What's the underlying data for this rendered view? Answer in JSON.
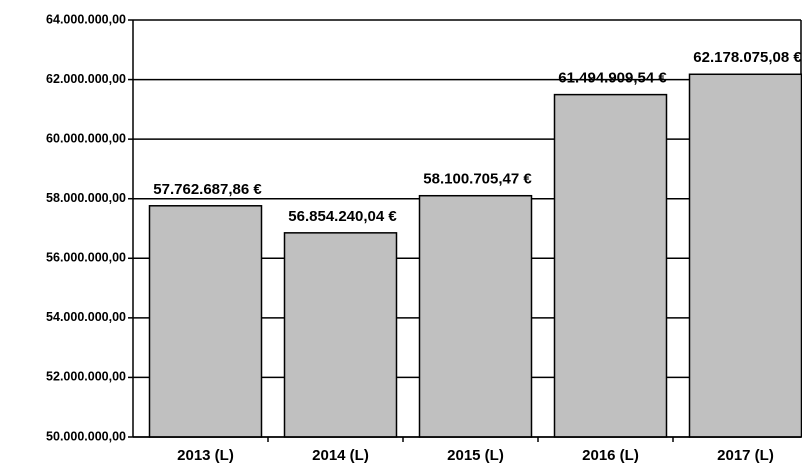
{
  "chart_data": {
    "type": "bar",
    "categories": [
      "2013 (L)",
      "2014 (L)",
      "2015 (L)",
      "2016 (L)",
      "2017 (L)"
    ],
    "values": [
      57762687.86,
      56854240.04,
      58100705.47,
      61494909.54,
      62178075.08
    ],
    "value_labels": [
      "57.762.687,86 €",
      "56.854.240,04 €",
      "58.100.705,47 €",
      "61.494.909,54 €",
      "62.178.075,08 €"
    ],
    "color": "#c0c0c0",
    "ylim": [
      50000000,
      64000000
    ],
    "yticks": [
      {
        "value": 50000000,
        "label": "50.000.000,00"
      },
      {
        "value": 52000000,
        "label": "52.000.000,00"
      },
      {
        "value": 54000000,
        "label": "54.000.000,00"
      },
      {
        "value": 56000000,
        "label": "56.000.000,00"
      },
      {
        "value": 58000000,
        "label": "58.000.000,00"
      },
      {
        "value": 60000000,
        "label": "60.000.000,00"
      },
      {
        "value": 62000000,
        "label": "62.000.000,00"
      },
      {
        "value": 64000000,
        "label": "64.000.000,00"
      }
    ],
    "grid": true
  }
}
